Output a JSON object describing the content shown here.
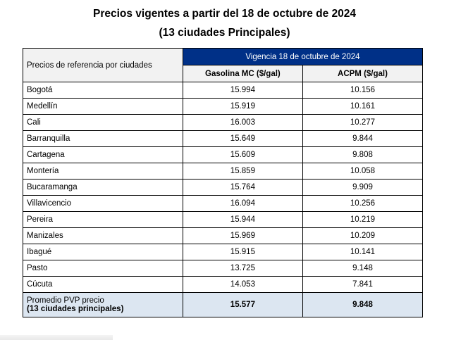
{
  "title": "Precios vigentes a partir del 18 de octubre de 2024",
  "subtitle": "(13 ciudades Principales)",
  "table": {
    "corner_label": "Precios de referencia por ciudades",
    "vigencia_label": "Vigencia 18 de octubre de 2024",
    "columns": [
      "Gasolina MC ($/gal)",
      "ACPM ($/gal)"
    ],
    "rows": [
      {
        "city": "Bogotá",
        "gasolina": "15.994",
        "acpm": "10.156"
      },
      {
        "city": "Medellín",
        "gasolina": "15.919",
        "acpm": "10.161"
      },
      {
        "city": "Cali",
        "gasolina": "16.003",
        "acpm": "10.277"
      },
      {
        "city": "Barranquilla",
        "gasolina": "15.649",
        "acpm": "9.844"
      },
      {
        "city": "Cartagena",
        "gasolina": "15.609",
        "acpm": "9.808"
      },
      {
        "city": "Montería",
        "gasolina": "15.859",
        "acpm": "10.058"
      },
      {
        "city": "Bucaramanga",
        "gasolina": "15.764",
        "acpm": "9.909"
      },
      {
        "city": "Villavicencio",
        "gasolina": "16.094",
        "acpm": "10.256"
      },
      {
        "city": "Pereira",
        "gasolina": "15.944",
        "acpm": "10.219"
      },
      {
        "city": "Manizales",
        "gasolina": "15.969",
        "acpm": "10.209"
      },
      {
        "city": "Ibagué",
        "gasolina": "15.915",
        "acpm": "10.141"
      },
      {
        "city": "Pasto",
        "gasolina": "13.725",
        "acpm": "9.148"
      },
      {
        "city": "Cúcuta",
        "gasolina": "14.053",
        "acpm": "7.841"
      }
    ],
    "average": {
      "label_line1": "Promedio PVP precio",
      "label_line2": "(13 ciudades principales)",
      "gasolina": "15.577",
      "acpm": "9.848"
    }
  },
  "colors": {
    "header_navy": "#003087",
    "header_gray": "#f2f2f2",
    "average_row": "#dce6f1"
  }
}
